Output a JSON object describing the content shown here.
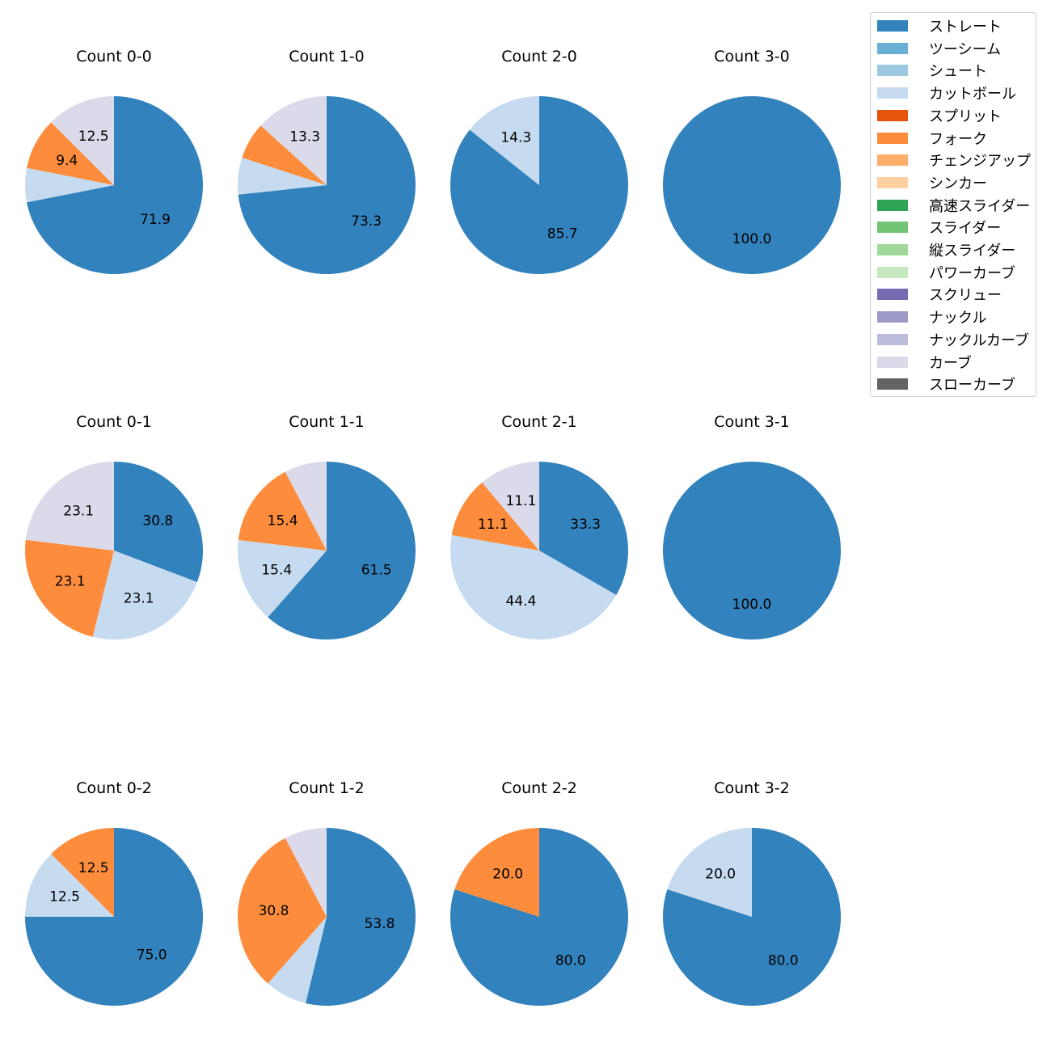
{
  "legend": [
    {
      "name": "ストレート",
      "color": "#3182bd"
    },
    {
      "name": "ツーシーム",
      "color": "#6baed6"
    },
    {
      "name": "シュート",
      "color": "#9ecae1"
    },
    {
      "name": "カットボール",
      "color": "#c6dbef"
    },
    {
      "name": "スプリット",
      "color": "#e6550d"
    },
    {
      "name": "フォーク",
      "color": "#fd8d3c"
    },
    {
      "name": "チェンジアップ",
      "color": "#fdae6b"
    },
    {
      "name": "シンカー",
      "color": "#fdd0a2"
    },
    {
      "name": "高速スライダー",
      "color": "#31a354"
    },
    {
      "name": "スライダー",
      "color": "#74c476"
    },
    {
      "name": "縦スライダー",
      "color": "#a1d99b"
    },
    {
      "name": "パワーカーブ",
      "color": "#c7e9c0"
    },
    {
      "name": "スクリュー",
      "color": "#756bb1"
    },
    {
      "name": "ナックル",
      "color": "#9e9ac8"
    },
    {
      "name": "ナックルカーブ",
      "color": "#bcbddc"
    },
    {
      "name": "カーブ",
      "color": "#dadaeb"
    },
    {
      "name": "スローカーブ",
      "color": "#636363"
    }
  ],
  "chart_data": [
    {
      "type": "pie",
      "title": "Count 0-0",
      "slices": [
        {
          "category": "ストレート",
          "value": 71.9,
          "label": "71.9"
        },
        {
          "category": "カットボール",
          "value": 6.2,
          "label": ""
        },
        {
          "category": "フォーク",
          "value": 9.4,
          "label": "9.4"
        },
        {
          "category": "カーブ",
          "value": 12.5,
          "label": "12.5"
        }
      ]
    },
    {
      "type": "pie",
      "title": "Count 1-0",
      "slices": [
        {
          "category": "ストレート",
          "value": 73.3,
          "label": "73.3"
        },
        {
          "category": "カットボール",
          "value": 6.7,
          "label": ""
        },
        {
          "category": "フォーク",
          "value": 6.7,
          "label": ""
        },
        {
          "category": "カーブ",
          "value": 13.3,
          "label": "13.3"
        }
      ]
    },
    {
      "type": "pie",
      "title": "Count 2-0",
      "slices": [
        {
          "category": "ストレート",
          "value": 85.7,
          "label": "85.7"
        },
        {
          "category": "カットボール",
          "value": 14.3,
          "label": "14.3"
        }
      ]
    },
    {
      "type": "pie",
      "title": "Count 3-0",
      "slices": [
        {
          "category": "ストレート",
          "value": 100.0,
          "label": "100.0"
        }
      ]
    },
    {
      "type": "pie",
      "title": "Count 0-1",
      "slices": [
        {
          "category": "ストレート",
          "value": 30.8,
          "label": "30.8"
        },
        {
          "category": "カットボール",
          "value": 23.1,
          "label": "23.1"
        },
        {
          "category": "フォーク",
          "value": 23.1,
          "label": "23.1"
        },
        {
          "category": "カーブ",
          "value": 23.1,
          "label": "23.1"
        }
      ]
    },
    {
      "type": "pie",
      "title": "Count 1-1",
      "slices": [
        {
          "category": "ストレート",
          "value": 61.5,
          "label": "61.5"
        },
        {
          "category": "カットボール",
          "value": 15.4,
          "label": "15.4"
        },
        {
          "category": "フォーク",
          "value": 15.4,
          "label": "15.4"
        },
        {
          "category": "カーブ",
          "value": 7.7,
          "label": ""
        }
      ]
    },
    {
      "type": "pie",
      "title": "Count 2-1",
      "slices": [
        {
          "category": "ストレート",
          "value": 33.3,
          "label": "33.3"
        },
        {
          "category": "カットボール",
          "value": 44.4,
          "label": "44.4"
        },
        {
          "category": "フォーク",
          "value": 11.1,
          "label": "11.1"
        },
        {
          "category": "カーブ",
          "value": 11.1,
          "label": "11.1"
        }
      ]
    },
    {
      "type": "pie",
      "title": "Count 3-1",
      "slices": [
        {
          "category": "ストレート",
          "value": 100.0,
          "label": "100.0"
        }
      ]
    },
    {
      "type": "pie",
      "title": "Count 0-2",
      "slices": [
        {
          "category": "ストレート",
          "value": 75.0,
          "label": "75.0"
        },
        {
          "category": "カットボール",
          "value": 12.5,
          "label": "12.5"
        },
        {
          "category": "フォーク",
          "value": 12.5,
          "label": "12.5"
        }
      ]
    },
    {
      "type": "pie",
      "title": "Count 1-2",
      "slices": [
        {
          "category": "ストレート",
          "value": 53.8,
          "label": "53.8"
        },
        {
          "category": "カットボール",
          "value": 7.7,
          "label": ""
        },
        {
          "category": "フォーク",
          "value": 30.8,
          "label": "30.8"
        },
        {
          "category": "カーブ",
          "value": 7.7,
          "label": ""
        }
      ]
    },
    {
      "type": "pie",
      "title": "Count 2-2",
      "slices": [
        {
          "category": "ストレート",
          "value": 80.0,
          "label": "80.0"
        },
        {
          "category": "フォーク",
          "value": 20.0,
          "label": "20.0"
        }
      ]
    },
    {
      "type": "pie",
      "title": "Count 3-2",
      "slices": [
        {
          "category": "ストレート",
          "value": 80.0,
          "label": "80.0"
        },
        {
          "category": "カットボール",
          "value": 20.0,
          "label": "20.0"
        }
      ]
    }
  ]
}
